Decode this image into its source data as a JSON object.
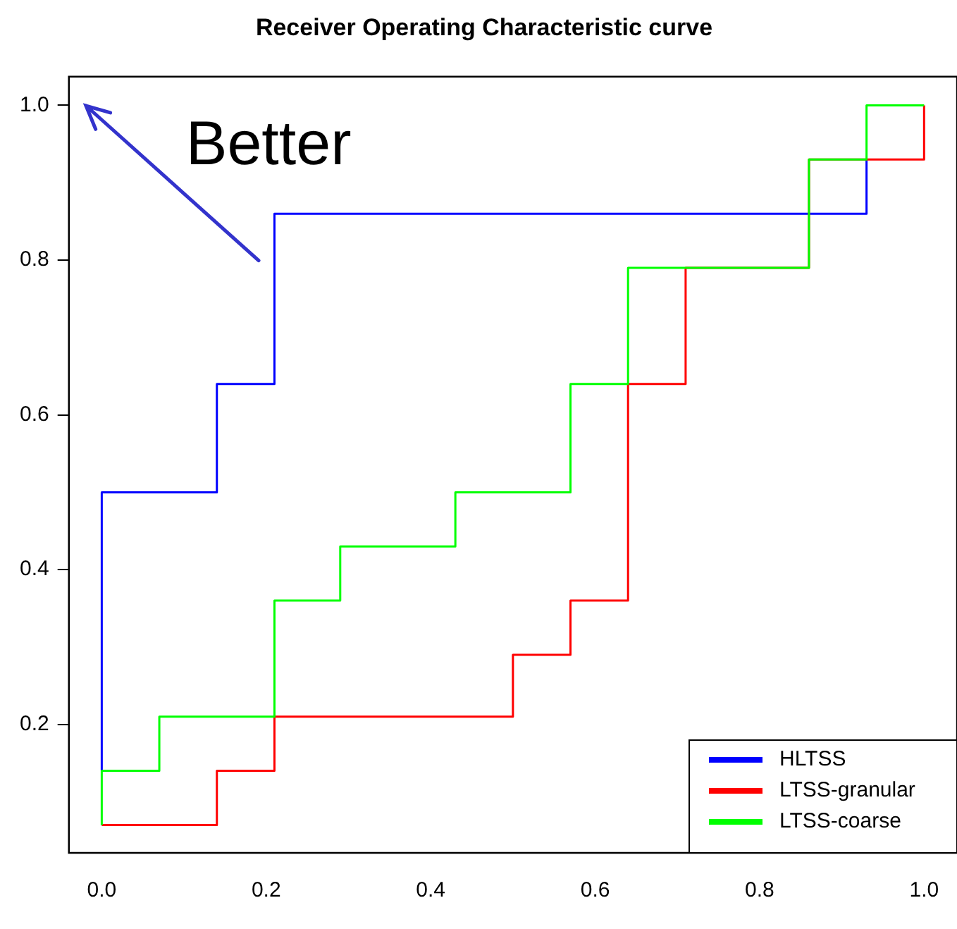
{
  "chart_data": {
    "type": "step",
    "title": "Receiver Operating Characteristic curve",
    "annotations": [
      "Better"
    ],
    "xlim": [
      -0.04,
      1.04
    ],
    "ylim": [
      0.034,
      1.037
    ],
    "xticks": [
      {
        "value": 0,
        "label": "0.0"
      },
      0.2,
      0.4,
      0.6,
      0.8,
      {
        "value": 1,
        "label": "1.0"
      }
    ],
    "yticks": [
      0.2,
      0.4,
      0.6,
      0.8,
      {
        "value": 1,
        "label": "1.0"
      }
    ],
    "grid": false,
    "legend": "bottom right",
    "marker": "none",
    "line_style": "solid",
    "series": [
      {
        "name": "HLTSS",
        "color": "#0000ff",
        "x": [
          0,
          0,
          0.14,
          0.21,
          0.93
        ],
        "values": [
          0.14,
          0.5,
          0.64,
          0.86,
          0.93
        ]
      },
      {
        "name": "LTSS-granular",
        "color": "#ff0000",
        "x": [
          0,
          0.14,
          0.21,
          0.5,
          0.57,
          0.64,
          0.71,
          0.86,
          1
        ],
        "values": [
          0.07,
          0.14,
          0.21,
          0.29,
          0.36,
          0.64,
          0.79,
          0.93,
          1
        ]
      },
      {
        "name": "LTSS-coarse",
        "color": "#00ff00",
        "x": [
          0,
          0,
          0.07,
          0.21,
          0.29,
          0.43,
          0.57,
          0.64,
          0.86,
          0.93,
          1
        ],
        "values": [
          0.07,
          0.14,
          0.21,
          0.36,
          0.43,
          0.5,
          0.64,
          0.79,
          0.93,
          1,
          1
        ]
      }
    ]
  }
}
